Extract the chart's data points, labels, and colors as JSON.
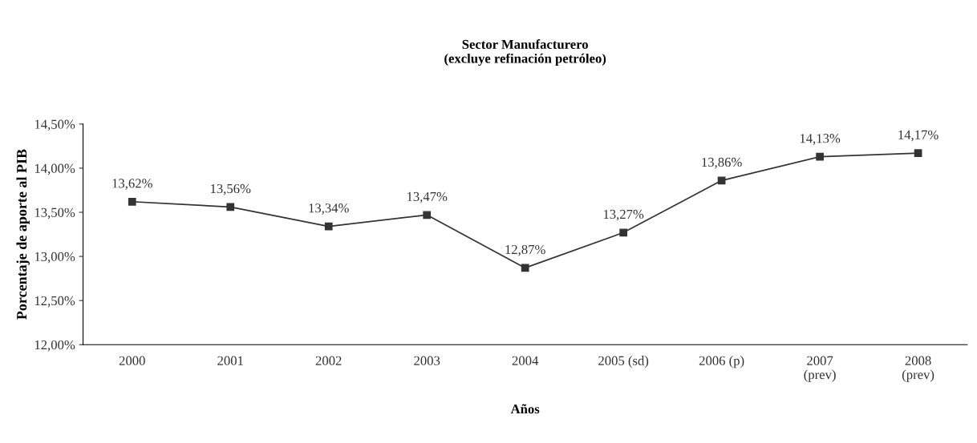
{
  "chart_data": {
    "type": "line",
    "title": "Sector Manufacturero\n(excluye refinación petróleo)",
    "xlabel": "Años",
    "ylabel": "Porcentaje de aporte al PIB",
    "categories": [
      "2000",
      "2001",
      "2002",
      "2003",
      "2004",
      "2005 (sd)",
      "2006 (p)",
      "2007\n(prev)",
      "2008\n(prev)"
    ],
    "series": [
      {
        "color": "#333333",
        "values": [
          13.62,
          13.56,
          13.34,
          13.47,
          12.87,
          13.27,
          13.86,
          14.13,
          14.17
        ],
        "value_labels": [
          "13,62%",
          "13,56%",
          "13,34%",
          "13,47%",
          "12,87%",
          "13,27%",
          "13,86%",
          "14,13%",
          "14,17%"
        ]
      }
    ],
    "ylim": [
      12.0,
      14.5
    ],
    "yticks": [
      {
        "value": 12.0,
        "label": "12,00%"
      },
      {
        "value": 12.5,
        "label": "12,50%"
      },
      {
        "value": 13.0,
        "label": "13,00%"
      },
      {
        "value": 13.5,
        "label": "13,50%"
      },
      {
        "value": 14.0,
        "label": "14,00%"
      },
      {
        "value": 14.5,
        "label": "14,50%"
      }
    ],
    "marker": "square",
    "line_style": "solid",
    "grid": false,
    "legend": false
  }
}
